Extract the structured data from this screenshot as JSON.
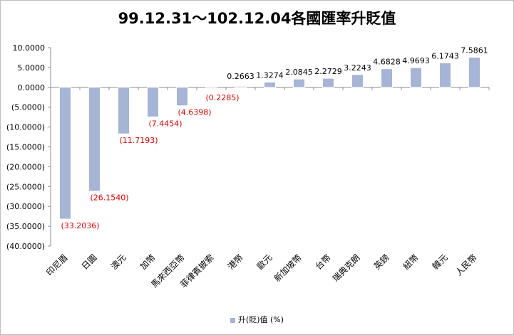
{
  "chart_data": {
    "type": "bar",
    "title": "99.12.31～102.12.04各國匯率升貶值",
    "categories": [
      "印尼盾",
      "日圓",
      "澳元",
      "加幣",
      "馬來西亞幣",
      "菲律賓披索",
      "港幣",
      "歐元",
      "新加坡幣",
      "台幣",
      "瑞典克朗",
      "英鎊",
      "紐幣",
      "韓元",
      "人民幣"
    ],
    "series": [
      {
        "name": "升(貶)值 (%)",
        "values": [
          -33.2036,
          -26.154,
          -11.7193,
          -7.4454,
          -4.6398,
          -0.2285,
          0.2663,
          1.3274,
          2.0845,
          2.2729,
          3.2243,
          4.6828,
          4.9693,
          6.1743,
          7.5861
        ],
        "labels": [
          "(33.2036)",
          "(26.1540)",
          "(11.7193)",
          "(7.4454)",
          "(4.6398)",
          "(0.2285)",
          "0.2663",
          "1.3274",
          "2.0845",
          "2.2729",
          "3.2243",
          "4.6828",
          "4.9693",
          "6.1743",
          "7.5861"
        ]
      }
    ],
    "yticks": [
      10,
      5,
      0,
      -5,
      -10,
      -15,
      -20,
      -25,
      -30,
      -35,
      -40
    ],
    "ytick_labels": [
      "10.0000",
      "5.0000",
      "0.0000",
      "(5.0000)",
      "(10.0000)",
      "(15.0000)",
      "(20.0000)",
      "(25.0000)",
      "(30.0000)",
      "(35.0000)",
      "(40.0000)"
    ],
    "ylim": [
      -40,
      10
    ],
    "grid": false,
    "legend_position": "bottom",
    "colors": {
      "bar_fill": "#a6b4d6",
      "bar_stroke": "#ffffff",
      "negative_label": "#e00000",
      "positive_label": "#000000",
      "axis": "#8c8c8c"
    }
  }
}
